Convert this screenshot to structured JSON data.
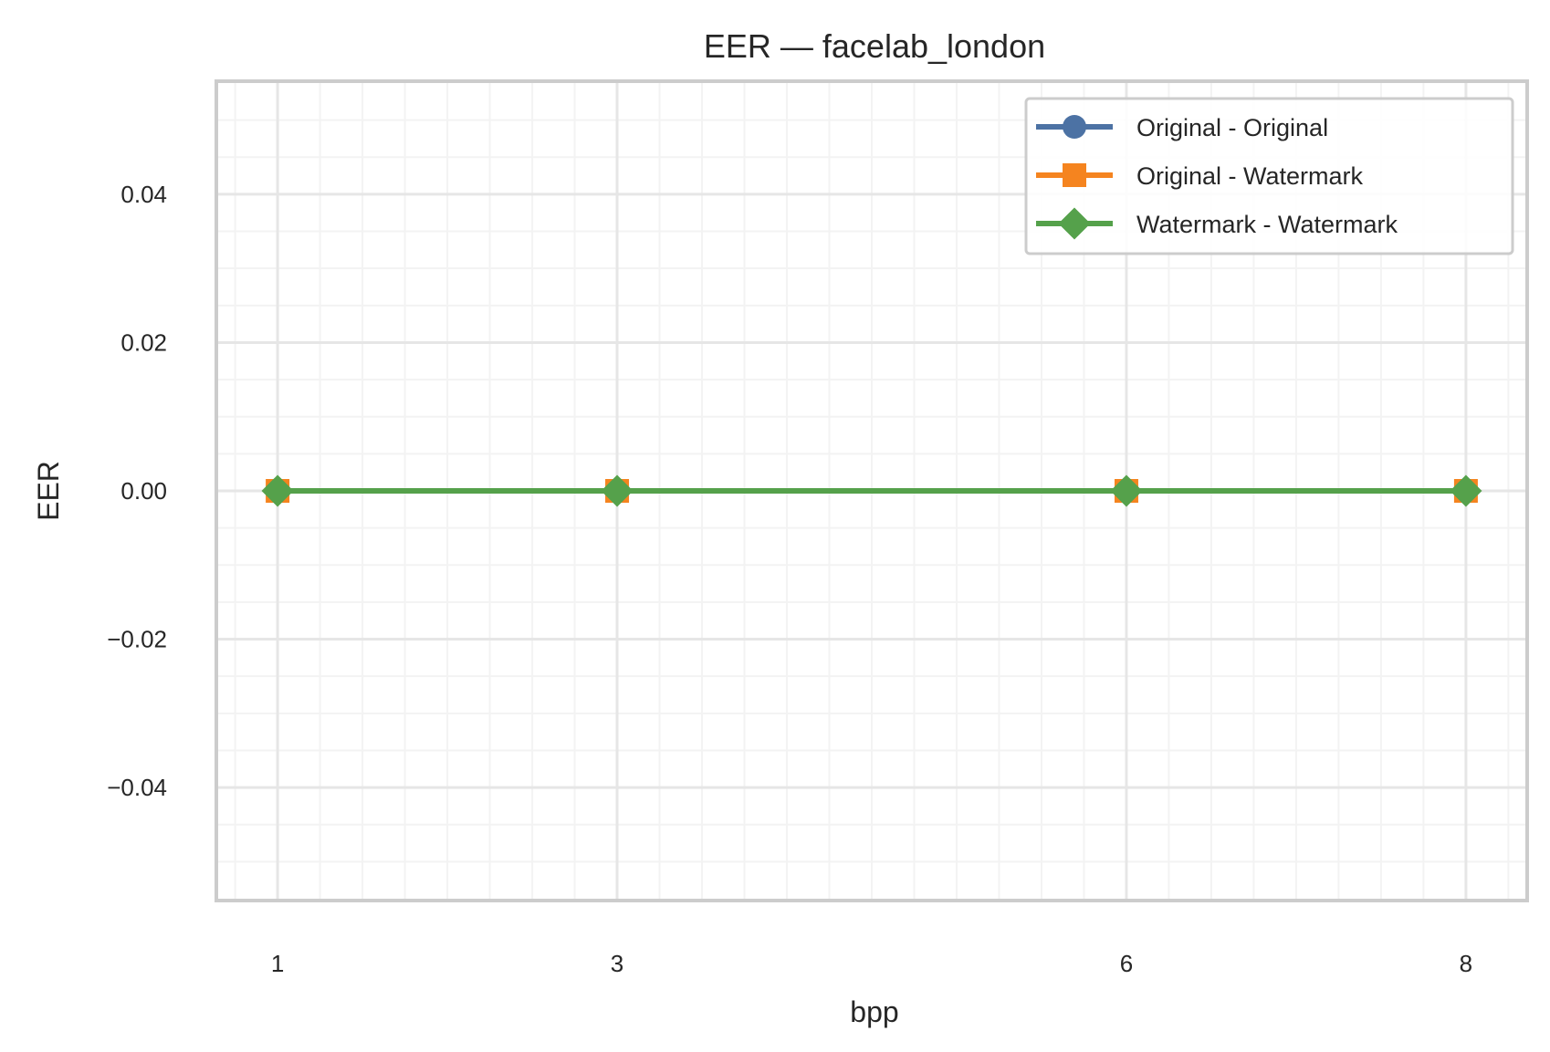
{
  "chart_data": {
    "type": "line",
    "title": "EER — facelab_london",
    "xlabel": "bpp",
    "ylabel": "EER",
    "x": [
      1,
      3,
      6,
      8
    ],
    "xticks": [
      "1",
      "3",
      "6",
      "8"
    ],
    "xlim": [
      0.65,
      8.35
    ],
    "ylim": [
      -0.055,
      0.055
    ],
    "yticks": [
      -0.04,
      -0.02,
      0.0,
      0.02,
      0.04
    ],
    "ytick_labels": [
      "−0.04",
      "−0.02",
      "0.00",
      "0.02",
      "0.04"
    ],
    "grid": true,
    "legend_position": "top-right",
    "series": [
      {
        "name": "Original - Original",
        "values": [
          0,
          0,
          0,
          0
        ],
        "color": "#4c72a4",
        "marker": "circle"
      },
      {
        "name": "Original - Watermark",
        "values": [
          0,
          0,
          0,
          0
        ],
        "color": "#f5841f",
        "marker": "square"
      },
      {
        "name": "Watermark - Watermark",
        "values": [
          0,
          0,
          0,
          0
        ],
        "color": "#55a14b",
        "marker": "diamond"
      }
    ]
  }
}
